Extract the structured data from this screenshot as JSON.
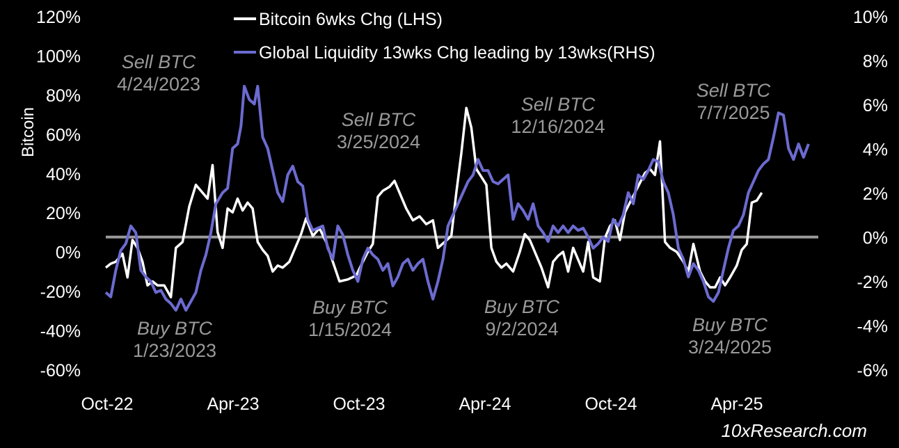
{
  "chart_data": {
    "type": "line",
    "x_tick_labels": [
      "Oct-22",
      "Apr-23",
      "Oct-23",
      "Apr-24",
      "Oct-24",
      "Apr-25"
    ],
    "left_axis": {
      "label": "Bitcoin",
      "ticks": [
        "120%",
        "100%",
        "80%",
        "60%",
        "40%",
        "20%",
        "0%",
        "-20%",
        "-40%",
        "-60%"
      ],
      "range": [
        -60,
        120
      ]
    },
    "right_axis": {
      "label": "",
      "ticks": [
        "10%",
        "8%",
        "6%",
        "4%",
        "2%",
        "0%",
        "-2%",
        "-4%",
        "-6%"
      ],
      "range": [
        -6,
        10
      ]
    },
    "grid": false,
    "legend_position": "top",
    "zero_line_color": "#999999",
    "series": [
      {
        "name": "Bitcoin 6wks Chg (LHS)",
        "axis": "left",
        "color": "#ffffff",
        "points": [
          [
            0,
            -8
          ],
          [
            0.3,
            -6
          ],
          [
            0.6,
            -5
          ],
          [
            1.0,
            -1
          ],
          [
            1.3,
            -13
          ],
          [
            1.6,
            6
          ],
          [
            1.9,
            2
          ],
          [
            2.2,
            -5
          ],
          [
            2.5,
            -17
          ],
          [
            2.8,
            -15
          ],
          [
            3.1,
            -17
          ],
          [
            3.5,
            -17
          ],
          [
            3.9,
            -23
          ],
          [
            4.2,
            2
          ],
          [
            4.6,
            5
          ],
          [
            5.0,
            23
          ],
          [
            5.4,
            34
          ],
          [
            5.8,
            30
          ],
          [
            6.1,
            27
          ],
          [
            6.4,
            44
          ],
          [
            6.7,
            10
          ],
          [
            7.0,
            2
          ],
          [
            7.3,
            22
          ],
          [
            7.6,
            20
          ],
          [
            7.9,
            27
          ],
          [
            8.2,
            21
          ],
          [
            8.5,
            25
          ],
          [
            8.8,
            22
          ],
          [
            9.1,
            5
          ],
          [
            9.4,
            1
          ],
          [
            9.7,
            -2
          ],
          [
            10.0,
            -10
          ],
          [
            10.3,
            -7
          ],
          [
            10.6,
            -8
          ],
          [
            11.0,
            -5
          ],
          [
            11.4,
            3
          ],
          [
            11.7,
            9
          ],
          [
            12.0,
            17
          ],
          [
            12.4,
            8
          ],
          [
            12.8,
            12
          ],
          [
            13.2,
            5
          ],
          [
            13.6,
            -5
          ],
          [
            14.0,
            -15
          ],
          [
            14.5,
            -14
          ],
          [
            15.0,
            -12
          ],
          [
            15.4,
            -5
          ],
          [
            15.7,
            0
          ],
          [
            16.0,
            4
          ],
          [
            16.3,
            28
          ],
          [
            16.6,
            31
          ],
          [
            17.0,
            33
          ],
          [
            17.3,
            36
          ],
          [
            17.7,
            28
          ],
          [
            18.0,
            22
          ],
          [
            18.4,
            16
          ],
          [
            18.8,
            18
          ],
          [
            19.2,
            14
          ],
          [
            19.6,
            16
          ],
          [
            19.9,
            2
          ],
          [
            20.3,
            5
          ],
          [
            20.7,
            8
          ],
          [
            21.0,
            30
          ],
          [
            21.3,
            50
          ],
          [
            21.6,
            73
          ],
          [
            21.9,
            63
          ],
          [
            22.2,
            42
          ],
          [
            22.5,
            38
          ],
          [
            22.8,
            34
          ],
          [
            23.1,
            2
          ],
          [
            23.4,
            -5
          ],
          [
            23.7,
            -8
          ],
          [
            24.0,
            -6
          ],
          [
            24.4,
            -10
          ],
          [
            24.8,
            0
          ],
          [
            25.1,
            9
          ],
          [
            25.4,
            6
          ],
          [
            25.7,
            0
          ],
          [
            26.1,
            -8
          ],
          [
            26.5,
            -18
          ],
          [
            26.8,
            -5
          ],
          [
            27.1,
            -2
          ],
          [
            27.4,
            0
          ],
          [
            27.7,
            -10
          ],
          [
            28.0,
            2
          ],
          [
            28.3,
            -4
          ],
          [
            28.6,
            -10
          ],
          [
            28.9,
            5
          ],
          [
            29.2,
            -13
          ],
          [
            29.6,
            -15
          ],
          [
            29.9,
            7
          ],
          [
            30.2,
            13
          ],
          [
            30.5,
            16
          ],
          [
            30.8,
            6
          ],
          [
            31.1,
            20
          ],
          [
            31.4,
            25
          ],
          [
            31.7,
            30
          ],
          [
            32.0,
            35
          ],
          [
            32.3,
            40
          ],
          [
            32.6,
            42
          ],
          [
            32.9,
            39
          ],
          [
            33.2,
            56
          ],
          [
            33.5,
            5
          ],
          [
            33.8,
            2
          ],
          [
            34.2,
            0
          ],
          [
            34.6,
            -5
          ],
          [
            34.9,
            -10
          ],
          [
            35.2,
            4
          ],
          [
            35.6,
            -10
          ],
          [
            35.9,
            -15
          ],
          [
            36.2,
            -18
          ],
          [
            36.5,
            -18
          ],
          [
            36.8,
            -13
          ],
          [
            37.1,
            -17
          ],
          [
            37.4,
            -13
          ],
          [
            37.8,
            -7
          ],
          [
            38.1,
            1
          ],
          [
            38.4,
            4
          ],
          [
            38.7,
            25
          ],
          [
            39.0,
            26
          ],
          [
            39.3,
            30
          ]
        ]
      },
      {
        "name": "Global Liquidity 13wks Chg leading by 13wks(RHS)",
        "axis": "right",
        "color": "#6c6bd0",
        "points": [
          [
            0,
            -2.5
          ],
          [
            0.3,
            -2.7
          ],
          [
            0.6,
            -1.5
          ],
          [
            0.9,
            -0.6
          ],
          [
            1.2,
            -0.3
          ],
          [
            1.5,
            0.5
          ],
          [
            1.8,
            0.2
          ],
          [
            2.1,
            -1.5
          ],
          [
            2.4,
            -1.8
          ],
          [
            2.7,
            -2.0
          ],
          [
            3.0,
            -2.5
          ],
          [
            3.3,
            -2.4
          ],
          [
            3.6,
            -2.8
          ],
          [
            3.9,
            -3.0
          ],
          [
            4.2,
            -3.3
          ],
          [
            4.5,
            -2.8
          ],
          [
            4.8,
            -3.3
          ],
          [
            5.1,
            -2.9
          ],
          [
            5.4,
            -2.5
          ],
          [
            5.7,
            -1.5
          ],
          [
            6.0,
            -0.8
          ],
          [
            6.3,
            0.2
          ],
          [
            6.6,
            1.5
          ],
          [
            7.0,
            2.0
          ],
          [
            7.3,
            2.2
          ],
          [
            7.6,
            4.0
          ],
          [
            7.9,
            4.2
          ],
          [
            8.1,
            5.0
          ],
          [
            8.3,
            6.8
          ],
          [
            8.6,
            6.2
          ],
          [
            8.9,
            6.0
          ],
          [
            9.1,
            6.8
          ],
          [
            9.4,
            4.5
          ],
          [
            9.7,
            4.0
          ],
          [
            10.0,
            3.0
          ],
          [
            10.3,
            2.0
          ],
          [
            10.6,
            1.6
          ],
          [
            10.9,
            2.8
          ],
          [
            11.2,
            3.2
          ],
          [
            11.5,
            2.5
          ],
          [
            11.8,
            2.3
          ],
          [
            12.1,
            0.8
          ],
          [
            12.4,
            0.3
          ],
          [
            12.7,
            0.4
          ],
          [
            13.0,
            0.5
          ],
          [
            13.3,
            -0.5
          ],
          [
            13.6,
            -1.0
          ],
          [
            13.9,
            0.5
          ],
          [
            14.2,
            0.1
          ],
          [
            14.5,
            -0.8
          ],
          [
            14.8,
            -1.5
          ],
          [
            15.1,
            -2.0
          ],
          [
            15.4,
            -1.0
          ],
          [
            15.7,
            -0.5
          ],
          [
            16.0,
            -0.8
          ],
          [
            16.3,
            -1.0
          ],
          [
            16.6,
            -1.5
          ],
          [
            16.9,
            -1.2
          ],
          [
            17.2,
            -2.2
          ],
          [
            17.5,
            -1.8
          ],
          [
            17.8,
            -1.2
          ],
          [
            18.1,
            -1.0
          ],
          [
            18.4,
            -1.5
          ],
          [
            18.7,
            -1.2
          ],
          [
            19.0,
            -1.0
          ],
          [
            19.3,
            -2.0
          ],
          [
            19.6,
            -2.8
          ],
          [
            19.9,
            -2.0
          ],
          [
            20.2,
            -1.0
          ],
          [
            20.5,
            0.5
          ],
          [
            20.8,
            1.0
          ],
          [
            21.1,
            1.5
          ],
          [
            21.4,
            2.0
          ],
          [
            21.7,
            2.5
          ],
          [
            22.0,
            2.8
          ],
          [
            22.3,
            3.5
          ],
          [
            22.6,
            3.0
          ],
          [
            22.9,
            3.0
          ],
          [
            23.2,
            2.5
          ],
          [
            23.5,
            2.4
          ],
          [
            23.8,
            2.6
          ],
          [
            24.1,
            2.8
          ],
          [
            24.4,
            0.8
          ],
          [
            24.7,
            1.5
          ],
          [
            25.0,
            1.2
          ],
          [
            25.3,
            0.8
          ],
          [
            25.6,
            1.5
          ],
          [
            25.9,
            0.5
          ],
          [
            26.2,
            0.2
          ],
          [
            26.5,
            -0.2
          ],
          [
            26.8,
            0.5
          ],
          [
            27.1,
            0.2
          ],
          [
            27.4,
            0.5
          ],
          [
            27.7,
            0.2
          ],
          [
            28.0,
            0.5
          ],
          [
            28.3,
            0.3
          ],
          [
            28.6,
            0.4
          ],
          [
            28.9,
            0.0
          ],
          [
            29.2,
            -0.5
          ],
          [
            29.5,
            -0.3
          ],
          [
            29.8,
            0.0
          ],
          [
            30.1,
            -0.2
          ],
          [
            30.4,
            0.8
          ],
          [
            30.7,
            0.5
          ],
          [
            31.0,
            1.0
          ],
          [
            31.3,
            2.0
          ],
          [
            31.6,
            1.5
          ],
          [
            31.9,
            2.8
          ],
          [
            32.2,
            2.6
          ],
          [
            32.5,
            3.0
          ],
          [
            32.8,
            3.5
          ],
          [
            33.1,
            3.4
          ],
          [
            33.4,
            2.5
          ],
          [
            33.7,
            2.0
          ],
          [
            34.0,
            1.0
          ],
          [
            34.3,
            -0.5
          ],
          [
            34.6,
            -1.0
          ],
          [
            34.9,
            -1.8
          ],
          [
            35.2,
            -1.2
          ],
          [
            35.5,
            -1.5
          ],
          [
            35.8,
            -2.0
          ],
          [
            36.1,
            -2.7
          ],
          [
            36.4,
            -2.9
          ],
          [
            36.7,
            -2.5
          ],
          [
            37.0,
            -1.5
          ],
          [
            37.3,
            -0.5
          ],
          [
            37.6,
            0.3
          ],
          [
            37.9,
            0.5
          ],
          [
            38.2,
            1.0
          ],
          [
            38.5,
            2.0
          ],
          [
            38.8,
            2.5
          ],
          [
            39.1,
            3.0
          ],
          [
            39.4,
            3.3
          ],
          [
            39.7,
            3.5
          ],
          [
            40.0,
            4.5
          ],
          [
            40.3,
            5.6
          ],
          [
            40.6,
            5.5
          ],
          [
            40.9,
            4.0
          ],
          [
            41.2,
            3.5
          ],
          [
            41.5,
            4.2
          ],
          [
            41.8,
            3.6
          ],
          [
            42.1,
            4.2
          ]
        ]
      }
    ],
    "annotations": [
      {
        "line1": "Sell BTC",
        "line2": "4/24/2023",
        "target_x": 8.2,
        "target_y": 80
      },
      {
        "line1": "Buy BTC",
        "line2": "1/23/2023",
        "target_x": 4.2,
        "target_y": -30
      },
      {
        "line1": "Sell BTC",
        "line2": "3/25/2024",
        "target_x": 21.3,
        "target_y": 52
      },
      {
        "line1": "Buy BTC",
        "line2": "1/15/2024",
        "target_x": 19.6,
        "target_y": -30
      },
      {
        "line1": "Sell BTC",
        "line2": "12/16/2024",
        "target_x": 32.8,
        "target_y": 40
      },
      {
        "line1": "Buy BTC",
        "line2": "9/2/2024",
        "target_x": 29.2,
        "target_y": -13
      },
      {
        "line1": "Sell BTC",
        "line2": "7/7/2025",
        "target_x": 40.4,
        "target_y": 68
      },
      {
        "line1": "Buy BTC",
        "line2": "3/24/2025",
        "target_x": 36.3,
        "target_y": -24
      }
    ]
  },
  "branding": "10xResearch.com"
}
